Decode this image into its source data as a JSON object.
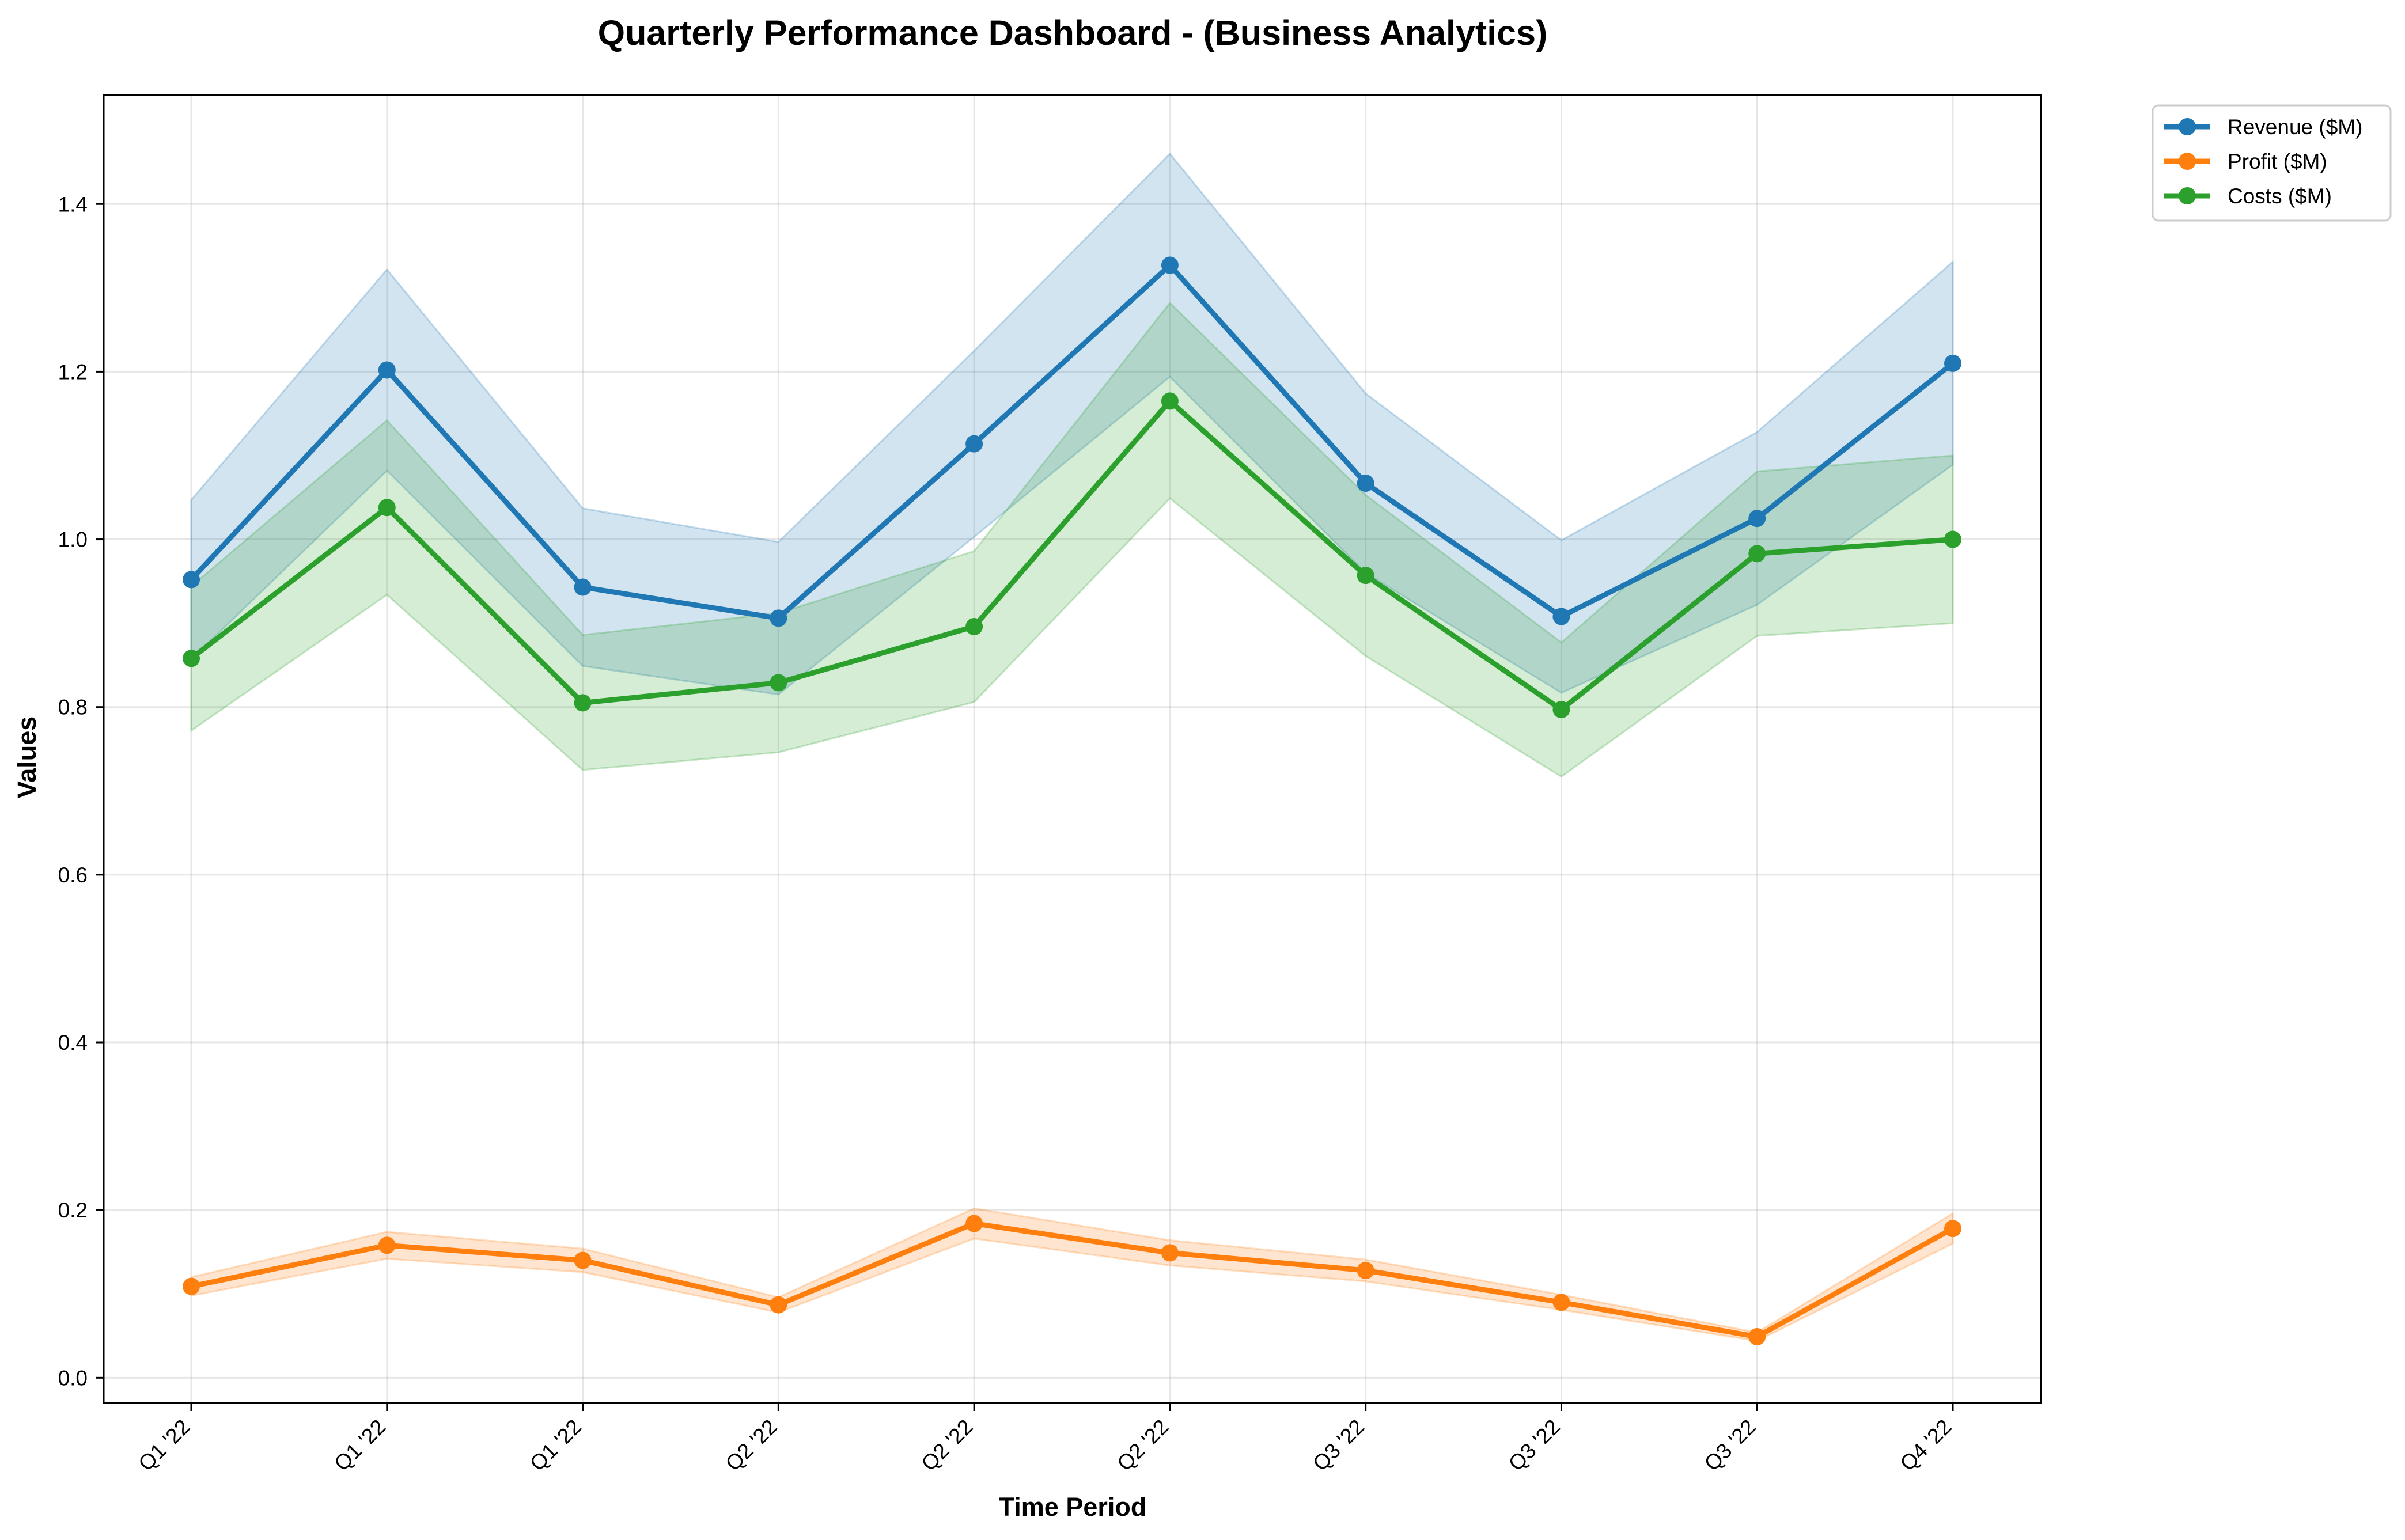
{
  "chart_data": {
    "type": "line",
    "title": "Quarterly Performance Dashboard - (Business Analytics)",
    "xlabel": "Time Period",
    "ylabel": "Values",
    "categories": [
      "Q1 '22",
      "Q1 '22",
      "Q1 '22",
      "Q2 '22",
      "Q2 '22",
      "Q2 '22",
      "Q3 '22",
      "Q3 '22",
      "Q3 '22",
      "Q4 '22"
    ],
    "ylim": [
      -0.03,
      1.53
    ],
    "yticks": [
      0.0,
      0.2,
      0.4,
      0.6,
      0.8,
      1.0,
      1.2,
      1.4
    ],
    "ytick_labels": [
      "0.0",
      "0.2",
      "0.4",
      "0.6",
      "0.8",
      "1.0",
      "1.2",
      "1.4"
    ],
    "grid": true,
    "legend_position": "outside-top-right",
    "series": [
      {
        "name": "Revenue ($M)",
        "color": "#1f77b4",
        "values": [
          0.952,
          1.202,
          0.943,
          0.906,
          1.114,
          1.327,
          1.067,
          0.908,
          1.025,
          1.21
        ],
        "band_upper": [
          1.047,
          1.322,
          1.037,
          0.997,
          1.225,
          1.46,
          1.174,
          0.999,
          1.128,
          1.331
        ],
        "band_lower": [
          0.857,
          1.082,
          0.849,
          0.815,
          1.003,
          1.194,
          0.96,
          0.817,
          0.922,
          1.089
        ]
      },
      {
        "name": "Profit ($M)",
        "color": "#ff7f0e",
        "values": [
          0.109,
          0.158,
          0.14,
          0.087,
          0.184,
          0.149,
          0.128,
          0.09,
          0.049,
          0.178
        ],
        "band_upper": [
          0.12,
          0.174,
          0.154,
          0.096,
          0.202,
          0.164,
          0.141,
          0.099,
          0.054,
          0.196
        ],
        "band_lower": [
          0.098,
          0.142,
          0.126,
          0.078,
          0.166,
          0.134,
          0.115,
          0.081,
          0.044,
          0.16
        ]
      },
      {
        "name": "Costs ($M)",
        "color": "#2ca02c",
        "values": [
          0.858,
          1.038,
          0.805,
          0.829,
          0.896,
          1.165,
          0.957,
          0.797,
          0.983,
          1.0
        ],
        "band_upper": [
          0.944,
          1.142,
          0.886,
          0.912,
          0.986,
          1.282,
          1.053,
          0.877,
          1.081,
          1.1
        ],
        "band_lower": [
          0.772,
          0.934,
          0.725,
          0.746,
          0.806,
          1.049,
          0.861,
          0.717,
          0.885,
          0.9
        ]
      }
    ]
  }
}
